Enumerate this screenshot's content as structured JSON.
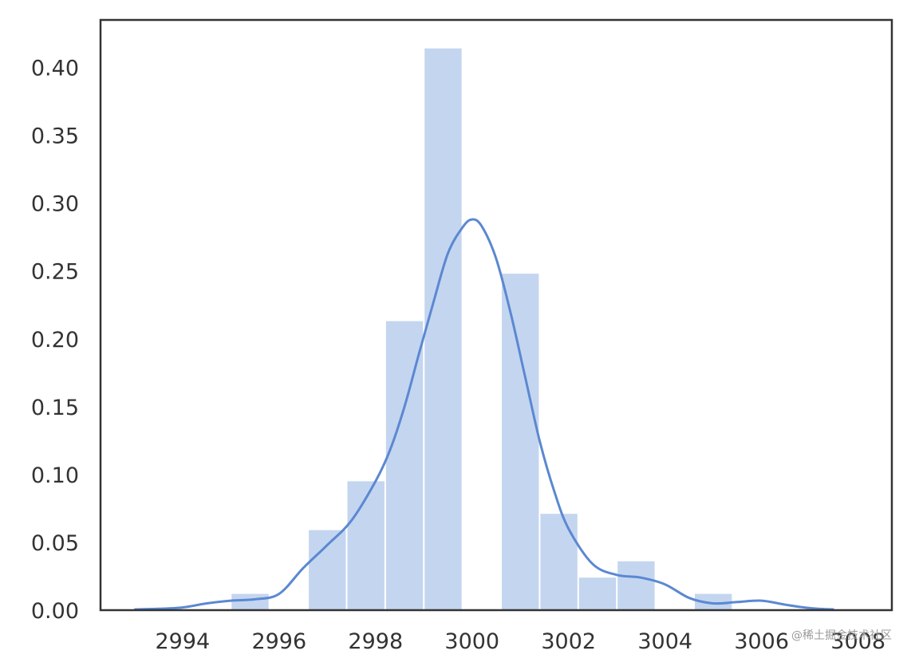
{
  "chart_data": {
    "type": "bar",
    "subtype": "histogram-with-kde",
    "title": "",
    "xlabel": "",
    "ylabel": "",
    "xlim": [
      2992.3,
      3008.7
    ],
    "ylim": [
      0,
      0.435
    ],
    "grid": false,
    "colors": {
      "bar": "#c4d5f0",
      "line": "#5b88d1",
      "axis": "#333333"
    },
    "x_ticks": [
      {
        "value": 2994,
        "label": "2994"
      },
      {
        "value": 2996,
        "label": "2996"
      },
      {
        "value": 2998,
        "label": "2998"
      },
      {
        "value": 3000,
        "label": "3000"
      },
      {
        "value": 3002,
        "label": "3002"
      },
      {
        "value": 3004,
        "label": "3004"
      },
      {
        "value": 3006,
        "label": "3006"
      },
      {
        "value": 3008,
        "label": "3008"
      }
    ],
    "y_ticks": [
      {
        "value": 0.0,
        "label": "0.00"
      },
      {
        "value": 0.05,
        "label": "0.05"
      },
      {
        "value": 0.1,
        "label": "0.10"
      },
      {
        "value": 0.15,
        "label": "0.15"
      },
      {
        "value": 0.2,
        "label": "0.20"
      },
      {
        "value": 0.25,
        "label": "0.25"
      },
      {
        "value": 0.3,
        "label": "0.30"
      },
      {
        "value": 0.35,
        "label": "0.35"
      },
      {
        "value": 0.4,
        "label": "0.40"
      }
    ],
    "bins": [
      {
        "x0": 2995.0,
        "x1": 2995.8,
        "value": 0.012
      },
      {
        "x0": 2996.6,
        "x1": 2997.4,
        "value": 0.059
      },
      {
        "x0": 2997.4,
        "x1": 2998.2,
        "value": 0.095
      },
      {
        "x0": 2998.2,
        "x1": 2999.0,
        "value": 0.213
      },
      {
        "x0": 2999.0,
        "x1": 2999.8,
        "value": 0.414
      },
      {
        "x0": 3000.6,
        "x1": 3001.4,
        "value": 0.248
      },
      {
        "x0": 3001.4,
        "x1": 3002.2,
        "value": 0.071
      },
      {
        "x0": 3002.2,
        "x1": 3003.0,
        "value": 0.024
      },
      {
        "x0": 3003.0,
        "x1": 3003.8,
        "value": 0.036
      },
      {
        "x0": 3004.6,
        "x1": 3005.4,
        "value": 0.012
      }
    ],
    "kde": {
      "x": [
        2993.0,
        2993.5,
        2994.0,
        2994.5,
        2995.0,
        2995.5,
        2996.0,
        2996.5,
        2997.0,
        2997.5,
        2998.0,
        2998.3,
        2998.6,
        2998.9,
        2999.2,
        2999.5,
        2999.8,
        3000.0,
        3000.2,
        3000.5,
        3000.8,
        3001.1,
        3001.4,
        3001.7,
        3002.0,
        3002.5,
        3003.0,
        3003.5,
        3004.0,
        3004.5,
        3005.0,
        3005.5,
        3006.0,
        3006.5,
        3007.0,
        3007.5
      ],
      "y": [
        0.0005,
        0.001,
        0.002,
        0.005,
        0.007,
        0.008,
        0.012,
        0.031,
        0.048,
        0.066,
        0.095,
        0.118,
        0.15,
        0.189,
        0.227,
        0.263,
        0.282,
        0.288,
        0.283,
        0.259,
        0.219,
        0.172,
        0.125,
        0.088,
        0.06,
        0.034,
        0.026,
        0.024,
        0.019,
        0.009,
        0.005,
        0.006,
        0.007,
        0.004,
        0.0015,
        0.0005
      ]
    }
  },
  "watermark": "@稀土掘金技术社区"
}
